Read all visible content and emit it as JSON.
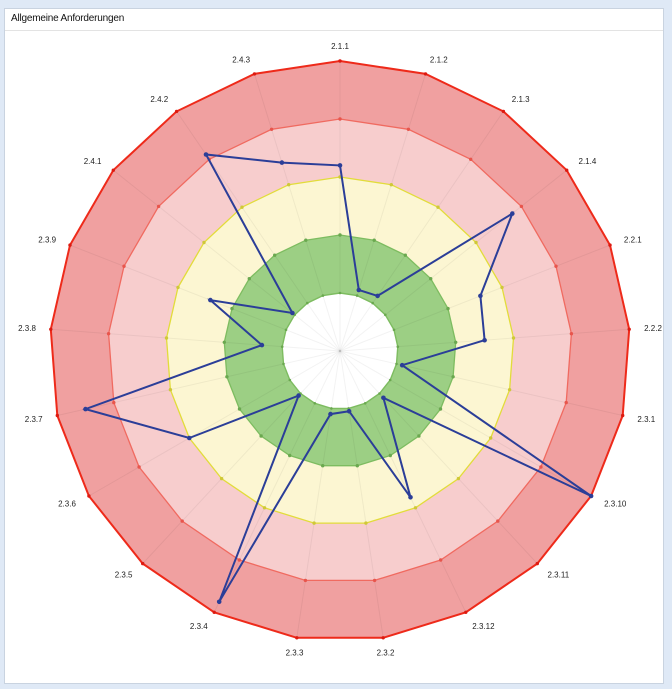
{
  "panel": {
    "title": "Allgemeine Anforderungen"
  },
  "chart_data": {
    "type": "radar",
    "categories": [
      "2.1.1",
      "2.1.2",
      "2.1.3",
      "2.1.4",
      "2.2.1",
      "2.2.2",
      "2.3.1",
      "2.3.10",
      "2.3.11",
      "2.3.12",
      "2.3.2",
      "2.3.3",
      "2.3.4",
      "2.3.5",
      "2.3.6",
      "2.3.7",
      "2.3.8",
      "2.3.9",
      "2.4.1",
      "2.4.2",
      "2.4.3"
    ],
    "rmax": 5,
    "bands": [
      {
        "from": 4,
        "to": 5,
        "fill": "#f0a0a0",
        "stroke": "#ee2a1a",
        "dot": "#dd1a10"
      },
      {
        "from": 3,
        "to": 4,
        "fill": "#f7cdcd",
        "stroke": "#f06a60",
        "dot": "#e8554c"
      },
      {
        "from": 2,
        "to": 3,
        "fill": "#fcf6d2",
        "stroke": "#e2dc3a",
        "dot": "#cfc838"
      },
      {
        "from": 1,
        "to": 2,
        "fill": "#9ccf84",
        "stroke": "#7dbc60",
        "dot": "#6aa84f"
      },
      {
        "from": 0,
        "to": 1,
        "fill": "#ffffff",
        "stroke": "#7dbc60",
        "dot": "#6aa84f"
      }
    ],
    "series": [
      {
        "color": "#2b3e98",
        "values": [
          3.2,
          1.1,
          1.15,
          3.8,
          2.6,
          2.5,
          1.1,
          5.0,
          1.1,
          2.8,
          1.05,
          1.1,
          4.8,
          1.05,
          3.0,
          4.5,
          1.35,
          2.4,
          1.05,
          4.1,
          3.4
        ]
      }
    ]
  }
}
